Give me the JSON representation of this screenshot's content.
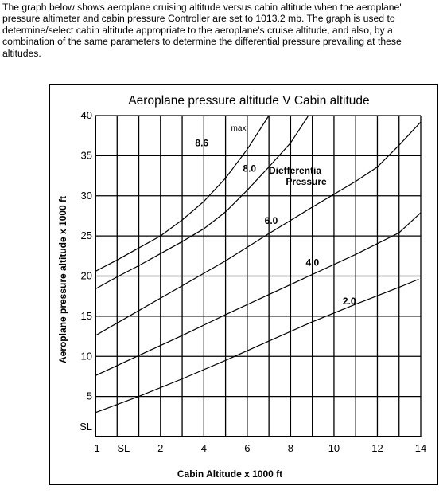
{
  "intro_text": "The graph below shows aeroplane cruising altitude versus cabin altitude when the aeroplane' pressure altimeter and cabin pressure Controller are set to 1013.2 mb.   The graph is used to determine/select cabin altitude appropriate to the aeroplane's cruise altitude, and also, by a combination of the same parameters to determine the differential pressure prevailing at these altitudes.",
  "chart_data": {
    "type": "line",
    "title": "Aeroplane pressure altitude V Cabin altitude",
    "xlabel": "Cabin Altitude x 1000 ft",
    "ylabel": "Aeroplane pressure altitude x 1000 ft",
    "xlim": [
      -1,
      14
    ],
    "ylim": [
      0,
      40
    ],
    "x_ticks": [
      {
        "value": -1,
        "label": "-1"
      },
      {
        "value": 0,
        "label": "SL"
      },
      {
        "value": 2,
        "label": "2"
      },
      {
        "value": 4,
        "label": "4"
      },
      {
        "value": 6,
        "label": "6"
      },
      {
        "value": 8,
        "label": "8"
      },
      {
        "value": 10,
        "label": "10"
      },
      {
        "value": 12,
        "label": "12"
      },
      {
        "value": 14,
        "label": "14"
      }
    ],
    "y_ticks": [
      {
        "value": 0,
        "label": "SL"
      },
      {
        "value": 5,
        "label": "5"
      },
      {
        "value": 10,
        "label": "10"
      },
      {
        "value": 15,
        "label": "15"
      },
      {
        "value": 20,
        "label": "20"
      },
      {
        "value": 25,
        "label": "25"
      },
      {
        "value": 30,
        "label": "30"
      },
      {
        "value": 35,
        "label": "35"
      },
      {
        "value": 40,
        "label": "40"
      }
    ],
    "grid": true,
    "annotation": {
      "line1": "Diefferentia",
      "line2": "Pressure",
      "max_label": "max"
    },
    "series": [
      {
        "name": "2.0",
        "x": [
          -1,
          1,
          3,
          5,
          7,
          9,
          11,
          13,
          13.9
        ],
        "y": [
          3.0,
          5.0,
          7.2,
          9.5,
          11.9,
          14.3,
          16.5,
          18.6,
          19.6
        ]
      },
      {
        "name": "4.0",
        "x": [
          -1,
          1,
          3,
          5,
          7,
          9,
          11,
          13,
          14
        ],
        "y": [
          7.6,
          10.1,
          12.6,
          15.2,
          17.7,
          20.2,
          22.7,
          25.4,
          27.9
        ]
      },
      {
        "name": "6.0",
        "x": [
          -1,
          1,
          3,
          5,
          7,
          9,
          11,
          12,
          13,
          14
        ],
        "y": [
          12.6,
          15.7,
          18.8,
          21.9,
          25.3,
          28.6,
          31.8,
          33.6,
          36.3,
          39.2
        ]
      },
      {
        "name": "8.0",
        "x": [
          -1,
          0,
          1,
          2,
          3,
          4,
          5,
          6,
          7,
          8,
          8.8
        ],
        "y": [
          18.4,
          19.9,
          21.3,
          22.8,
          24.3,
          25.9,
          28.0,
          30.7,
          33.6,
          36.6,
          39.9
        ]
      },
      {
        "name": "8.6",
        "x": [
          -1,
          0,
          1,
          2,
          3,
          4,
          5,
          6,
          7
        ],
        "y": [
          20.6,
          22.0,
          23.5,
          25.0,
          27.0,
          29.3,
          32.2,
          35.8,
          40.0
        ]
      }
    ]
  }
}
